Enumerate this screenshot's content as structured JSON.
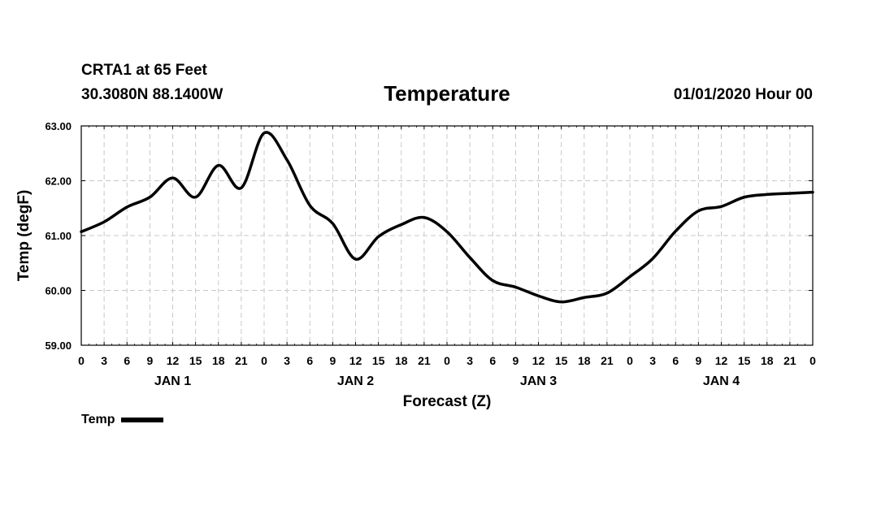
{
  "header": {
    "station": "CRTA1 at 65 Feet",
    "coords": "30.3080N 88.1400W",
    "issued": "01/01/2020 Hour 00"
  },
  "legend": {
    "label": "Temp"
  },
  "chart_data": {
    "type": "line",
    "title": "Temperature",
    "xlabel": "Forecast (Z)",
    "ylabel": "Temp (degF)",
    "ylim": [
      59.0,
      63.0
    ],
    "xlim": [
      0,
      96
    ],
    "yticks": [
      "59.00",
      "60.00",
      "61.00",
      "62.00",
      "63.00"
    ],
    "xtick_step_hours": 3,
    "xticks": [
      "0",
      "3",
      "6",
      "9",
      "12",
      "15",
      "18",
      "21",
      "0",
      "3",
      "6",
      "9",
      "12",
      "15",
      "18",
      "21",
      "0",
      "3",
      "6",
      "9",
      "12",
      "15",
      "18",
      "21",
      "0",
      "3",
      "6",
      "9",
      "12",
      "15",
      "18",
      "21",
      "0"
    ],
    "day_labels": [
      {
        "label": "JAN 1",
        "hour": 12
      },
      {
        "label": "JAN 2",
        "hour": 36
      },
      {
        "label": "JAN 3",
        "hour": 60
      },
      {
        "label": "JAN 4",
        "hour": 84
      }
    ],
    "grid": true,
    "series": [
      {
        "name": "Temp",
        "color": "#000000",
        "x": [
          0,
          3,
          6,
          9,
          12,
          15,
          18,
          21,
          24,
          27,
          30,
          33,
          36,
          39,
          42,
          45,
          48,
          51,
          54,
          57,
          60,
          63,
          66,
          69,
          72,
          75,
          78,
          81,
          84,
          87,
          90,
          93,
          96
        ],
        "values": [
          61.07,
          61.25,
          61.52,
          61.7,
          62.05,
          61.7,
          62.28,
          61.87,
          62.87,
          62.38,
          61.55,
          61.22,
          60.57,
          60.98,
          61.2,
          61.33,
          61.07,
          60.6,
          60.18,
          60.06,
          59.9,
          59.79,
          59.87,
          59.95,
          60.25,
          60.58,
          61.08,
          61.45,
          61.53,
          61.7,
          61.75,
          61.77,
          61.79
        ]
      }
    ]
  }
}
